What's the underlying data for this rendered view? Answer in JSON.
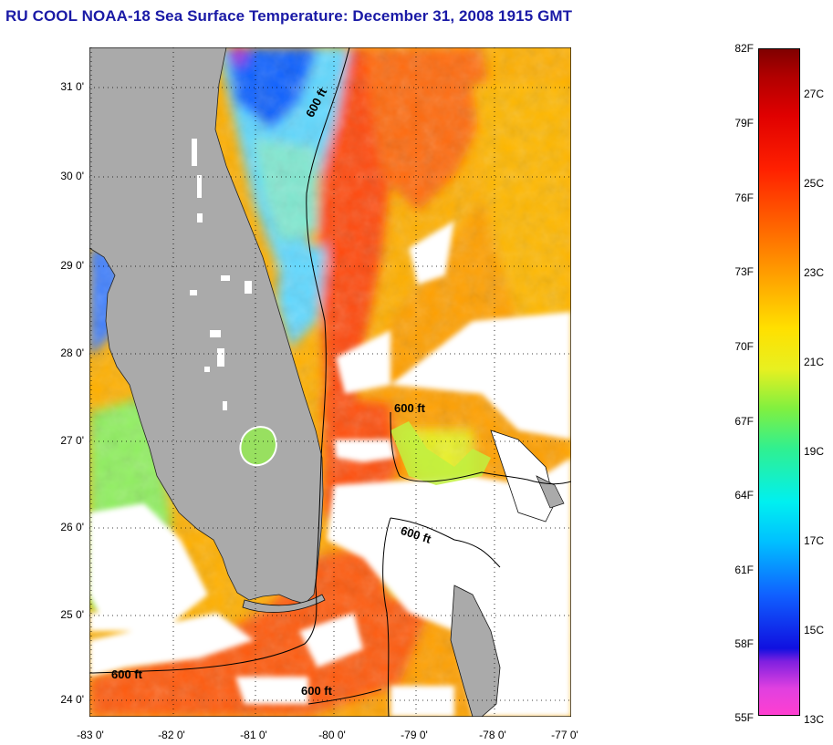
{
  "title": "RU COOL  NOAA-18  Sea Surface Temperature:  December 31, 2008 1915 GMT",
  "map": {
    "lat_labels": [
      "31 0'",
      "30 0'",
      "29 0'",
      "28 0'",
      "27 0'",
      "26 0'",
      "25 0'",
      "24 0'"
    ],
    "lon_labels": [
      "-83 0'",
      "-82 0'",
      "-81 0'",
      "-80 0'",
      "-79 0'",
      "-78 0'",
      "-77 0'"
    ],
    "contour_labels": [
      "600 ft",
      "600 ft",
      "600 ft",
      "600 ft",
      "600 ft"
    ],
    "colors": {
      "land": "#aaaaaa",
      "cloud": "#ffffff",
      "warm": "#ff4a10",
      "mid": "#ffb000",
      "cool": "#00a0ff"
    }
  },
  "colorbar": {
    "fahrenheit": [
      "82F",
      "79F",
      "76F",
      "73F",
      "70F",
      "67F",
      "64F",
      "61F",
      "58F",
      "55F"
    ],
    "celsius": [
      "27C",
      "25C",
      "23C",
      "21C",
      "19C",
      "17C",
      "15C",
      "13C"
    ]
  }
}
